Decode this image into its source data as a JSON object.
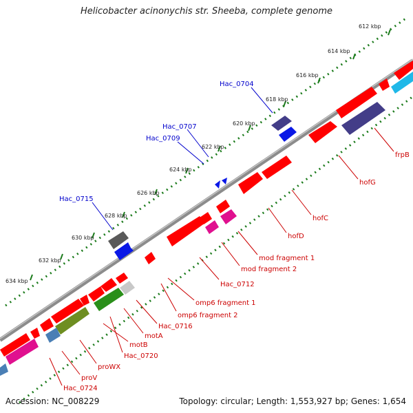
{
  "title": "Helicobacter acinonychis str. Sheeba, complete genome",
  "footer": {
    "accession": "Accession: NC_008229",
    "summary": "Topology: circular; Length: 1,553,927 bp; Genes: 1,654"
  },
  "colors": {
    "backbone": "#8c8c8c",
    "ticks": "#1a7a1a",
    "forward_label": "#0000cc",
    "reverse_label": "#cc0000",
    "gene_red": "#ff0000",
    "gene_blue": "#0a18e6",
    "gene_purple": "#433d88",
    "gene_gray": "#5a5a5a",
    "gene_magenta": "#e0108f",
    "gene_green": "#2a8f1a",
    "gene_olive": "#6e8e21",
    "gene_steelblue": "#4a7fb5",
    "gene_lightgray": "#c8c8c8",
    "gene_cyan": "#1fb8e8"
  },
  "kbp_ticks": [
    "612 kbp",
    "614 kbp",
    "616 kbp",
    "618 kbp",
    "620 kbp",
    "622 kbp",
    "624 kbp",
    "626 kbp",
    "628 kbp",
    "630 kbp",
    "632 kbp",
    "634 kbp"
  ],
  "forward_labels": [
    "Hac_0704",
    "Hac_0707",
    "Hac_0709",
    "Hac_0715"
  ],
  "reverse_labels": [
    "frpB",
    "hofG",
    "hofC",
    "hofD",
    "mod fragment 1",
    "mod fragment 2",
    "Hac_0712",
    "omp6 fragment 1",
    "omp6 fragment 2",
    "Hac_0716",
    "motA",
    "Hac_0720",
    "motB",
    "proWX",
    "proV",
    "Hac_0724"
  ]
}
